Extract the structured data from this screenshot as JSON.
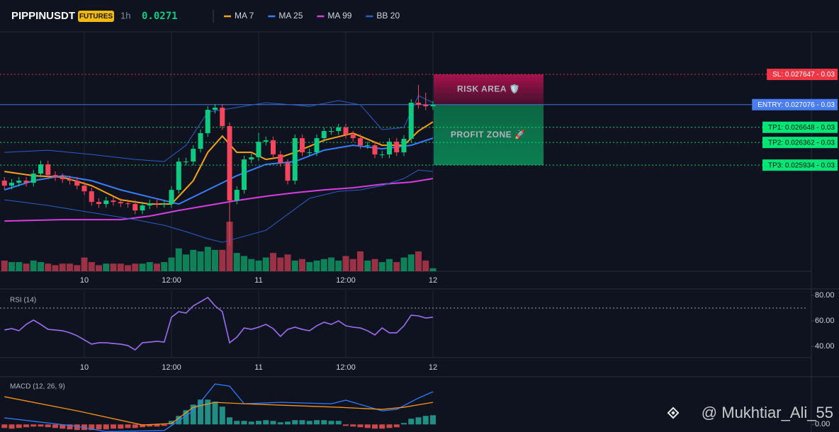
{
  "header": {
    "symbol": "PIPPINUSDT",
    "badge": "FUTURES",
    "interval": "1h",
    "price": "0.0271"
  },
  "watermark": "@ Mukhtiar_Ali_55",
  "chart_data": [
    {
      "type": "candlestick",
      "categories": [
        null,
        null,
        null,
        null,
        null,
        null,
        null,
        null,
        null,
        null,
        null,
        "10",
        null,
        null,
        null,
        null,
        null,
        null,
        null,
        null,
        null,
        null,
        null,
        "12:00",
        null,
        null,
        null,
        null,
        null,
        null,
        null,
        null,
        null,
        null,
        null,
        "11",
        null,
        null,
        null,
        null,
        null,
        null,
        null,
        null,
        null,
        null,
        null,
        "12:00",
        null,
        null,
        null,
        null,
        null,
        null,
        null,
        null,
        null,
        null,
        null,
        "12"
      ],
      "open": [
        0.02564,
        0.025546,
        0.0256,
        0.02564,
        0.0256,
        0.025774,
        0.025948,
        0.025747,
        0.025707,
        0.025667,
        0.02564,
        0.025546,
        0.025439,
        0.025239,
        0.025199,
        0.025265,
        0.025239,
        0.025212,
        0.025199,
        0.025078,
        0.025172,
        0.025212,
        0.025199,
        0.025199,
        0.025466,
        0.026001,
        0.026001,
        0.026242,
        0.026537,
        0.026978,
        0.027018,
        0.02667,
        0.025265,
        0.025466,
        0.026041,
        0.026082,
        0.026376,
        0.026403,
        0.026135,
        0.025975,
        0.02564,
        0.026443,
        0.026175,
        0.026175,
        0.026443,
        0.026577,
        0.026577,
        0.026644,
        0.02651,
        0.026443,
        0.026309,
        0.026309,
        0.026135,
        0.026135,
        0.026376,
        0.026175,
        0.02643,
        0.027112,
        0.027072,
        0.027045
      ],
      "high": [
        0.02571,
        0.02567,
        0.02571,
        0.02571,
        0.025844,
        0.026018,
        0.026018,
        0.025817,
        0.025777,
        0.025737,
        0.02571,
        0.025616,
        0.025509,
        0.025309,
        0.025335,
        0.025335,
        0.025309,
        0.025282,
        0.025269,
        0.025242,
        0.025282,
        0.025282,
        0.025269,
        0.025536,
        0.026071,
        0.026071,
        0.026312,
        0.026607,
        0.027048,
        0.027088,
        0.027088,
        0.02674,
        0.025536,
        0.026111,
        0.026152,
        0.026546,
        0.026473,
        0.026473,
        0.026205,
        0.026045,
        0.026513,
        0.026513,
        0.026245,
        0.026513,
        0.026647,
        0.026647,
        0.026714,
        0.026714,
        0.02658,
        0.026513,
        0.026379,
        0.026379,
        0.026205,
        0.026446,
        0.026446,
        0.0265,
        0.027182,
        0.02745,
        0.0273,
        0.027142
      ],
      "low": [
        0.025476,
        0.025476,
        0.02553,
        0.02553,
        0.02553,
        0.025704,
        0.025677,
        0.025637,
        0.025597,
        0.02557,
        0.025476,
        0.025369,
        0.025169,
        0.025129,
        0.025129,
        0.025169,
        0.025142,
        0.025129,
        0.025008,
        0.025008,
        0.025102,
        0.025129,
        0.025129,
        0.025129,
        0.025396,
        0.025931,
        0.025931,
        0.026172,
        0.026467,
        0.026908,
        0.0266,
        0.02442,
        0.025195,
        0.025396,
        0.025971,
        0.026012,
        0.026306,
        0.026065,
        0.025905,
        0.02557,
        0.02557,
        0.026105,
        0.026105,
        0.026105,
        0.026373,
        0.026507,
        0.026507,
        0.02644,
        0.026373,
        0.026239,
        0.026239,
        0.026065,
        0.026065,
        0.026065,
        0.026105,
        0.026105,
        0.02636,
        0.027002,
        0.026975,
        0.026975
      ],
      "close": [
        0.025546,
        0.0256,
        0.02564,
        0.0256,
        0.025774,
        0.025948,
        0.025747,
        0.025707,
        0.025667,
        0.02564,
        0.025546,
        0.025439,
        0.025239,
        0.025199,
        0.025265,
        0.025239,
        0.025212,
        0.025199,
        0.025078,
        0.025172,
        0.025212,
        0.025199,
        0.025199,
        0.025466,
        0.026001,
        0.026001,
        0.026242,
        0.026537,
        0.026978,
        0.027018,
        0.02667,
        0.025265,
        0.025466,
        0.026041,
        0.026082,
        0.026376,
        0.026403,
        0.026135,
        0.025975,
        0.02564,
        0.026443,
        0.026175,
        0.026175,
        0.026443,
        0.026577,
        0.026577,
        0.026644,
        0.02651,
        0.026443,
        0.026309,
        0.026309,
        0.026135,
        0.026135,
        0.026376,
        0.026175,
        0.02643,
        0.027112,
        0.027072,
        0.027045,
        0.027072
      ],
      "volume": [
        14,
        12,
        12,
        10,
        14,
        12,
        10,
        8,
        10,
        10,
        8,
        18,
        12,
        8,
        10,
        10,
        10,
        8,
        10,
        10,
        12,
        10,
        12,
        18,
        30,
        22,
        28,
        26,
        32,
        28,
        28,
        65,
        24,
        20,
        16,
        14,
        18,
        24,
        18,
        22,
        14,
        16,
        12,
        14,
        16,
        18,
        14,
        20,
        16,
        26,
        14,
        16,
        12,
        16,
        12,
        18,
        22,
        26,
        14,
        4
      ],
      "up_color": "#0ecb81",
      "down_color": "#f6465d",
      "series": [
        {
          "name": "MA 7",
          "color": "#f7a21b",
          "x": [
            0,
            4,
            8,
            12,
            16,
            20,
            23,
            26,
            28,
            30,
            32,
            34,
            36,
            38,
            40,
            44,
            48,
            52,
            55,
            57,
            59
          ],
          "values": [
            0.025814,
            0.025734,
            0.025707,
            0.025546,
            0.025279,
            0.025199,
            0.025199,
            0.02564,
            0.026175,
            0.026483,
            0.026175,
            0.026175,
            0.026041,
            0.026082,
            0.026175,
            0.026403,
            0.026537,
            0.026309,
            0.026309,
            0.026577,
            0.026751
          ]
        },
        {
          "name": "MA 25",
          "color": "#3b7dff",
          "x": [
            0,
            4,
            8,
            12,
            16,
            20,
            24,
            28,
            32,
            36,
            40,
            44,
            48,
            52,
            56,
            59
          ],
          "values": [
            0.025466,
            0.02564,
            0.025734,
            0.02564,
            0.025466,
            0.025332,
            0.025199,
            0.025466,
            0.025734,
            0.025948,
            0.026001,
            0.026215,
            0.026309,
            0.026242,
            0.026309,
            0.026443
          ]
        },
        {
          "name": "MA 99",
          "color": "#d63ee0",
          "x": [
            0,
            8,
            16,
            20,
            24,
            28,
            32,
            36,
            40,
            44,
            48,
            52,
            56,
            59
          ],
          "values": [
            0.024877,
            0.024904,
            0.024904,
            0.024971,
            0.025078,
            0.025172,
            0.025265,
            0.025346,
            0.025413,
            0.025466,
            0.025506,
            0.025573,
            0.025613,
            0.02568
          ]
        },
        {
          "name": "BB 20",
          "color": "#2a5fc9",
          "x": [
            0,
            6,
            12,
            18,
            22,
            25,
            28,
            30,
            36,
            42,
            46,
            49,
            52,
            55,
            57,
            59
          ],
          "values": [
            0.026175,
            0.026215,
            0.026135,
            0.026041,
            0.026001,
            0.026309,
            0.026938,
            0.026978,
            0.027112,
            0.027045,
            0.027152,
            0.027072,
            0.026603,
            0.026644,
            0.027246,
            0.027112
          ],
          "lower": [
            0.025279,
            0.025172,
            0.025038,
            0.024904,
            0.024797,
            0.024677,
            0.024543,
            0.024476,
            0.024703,
            0.025306,
            0.025439,
            0.025466,
            0.025546,
            0.02568,
            0.025841,
            0.025814
          ]
        }
      ],
      "levels": [
        {
          "value": 0.027647,
          "label": "SL: 0.027647 - 0.03",
          "color": "#f23645",
          "style": "dotted"
        },
        {
          "value": 0.027076,
          "label": "ENTRY: 0.027076 - 0.03",
          "color": "#4a7ef0",
          "style": "solid"
        },
        {
          "value": 0.026648,
          "label": "TP1: 0.026648 - 0.03",
          "color": "#00e676",
          "style": "dotted"
        },
        {
          "value": 0.026362,
          "label": "TP2: 0.026362 - 0.03",
          "color": "#00e676",
          "style": "dotted"
        },
        {
          "value": 0.025934,
          "label": "TP3: 0.025934 - 0.03",
          "color": "#00e676",
          "style": "dotted"
        }
      ],
      "zones": [
        {
          "label": "RISK AREA 🛡️",
          "from": 0.027647,
          "to": 0.027076,
          "color": "#ff3d7f"
        },
        {
          "label": "PROFIT ZONE 🚀",
          "from": 0.027076,
          "to": 0.025934,
          "color": "#39e6a1"
        }
      ],
      "ylim": [
        0.02393,
        0.02845
      ]
    },
    {
      "type": "line",
      "title": "RSI (14)",
      "categories": [
        null,
        null,
        null,
        null,
        null,
        null,
        null,
        null,
        null,
        null,
        null,
        "10",
        null,
        null,
        null,
        null,
        null,
        null,
        null,
        null,
        null,
        null,
        null,
        "12:00",
        null,
        null,
        null,
        null,
        null,
        null,
        null,
        null,
        null,
        null,
        null,
        "11",
        null,
        null,
        null,
        null,
        null,
        null,
        null,
        null,
        null,
        null,
        null,
        "12:00",
        null,
        null,
        null,
        null,
        null,
        null,
        null,
        null,
        null,
        null,
        null,
        "12"
      ],
      "values": [
        52.8,
        53.9,
        52.2,
        57.2,
        60.6,
        57.2,
        53.3,
        52.8,
        52.2,
        50.6,
        48.3,
        45.0,
        41.7,
        42.8,
        42.8,
        42.2,
        41.7,
        40.6,
        37.2,
        42.8,
        43.3,
        43.9,
        43.3,
        62.8,
        67.2,
        66.1,
        71.7,
        75.0,
        78.3,
        71.7,
        67.2,
        42.8,
        47.2,
        54.4,
        53.3,
        55.0,
        57.2,
        53.9,
        47.8,
        53.3,
        55.0,
        53.3,
        52.2,
        56.1,
        58.9,
        57.2,
        60.0,
        56.1,
        55.0,
        54.4,
        52.2,
        48.9,
        54.4,
        50.6,
        50.6,
        56.1,
        64.4,
        63.9,
        62.2,
        62.8
      ],
      "color": "#9b6ff0",
      "overbought": 70,
      "ylim": [
        31.1,
        83.9
      ],
      "yticks": [
        {
          "value": 80,
          "label": "80.00"
        },
        {
          "value": 60,
          "label": "60.00"
        },
        {
          "value": 40,
          "label": "40.00"
        }
      ]
    },
    {
      "type": "macd",
      "title": "MACD (12, 26, 9)",
      "histogram": [
        -4.7e-05,
        -5.6e-05,
        -4.7e-05,
        -3.7e-05,
        -2.8e-05,
        -2.8e-05,
        -3.7e-05,
        -4.7e-05,
        -5.6e-05,
        -6.5e-05,
        -7.4e-05,
        -7.4e-05,
        -7.4e-05,
        -6.5e-05,
        -6.5e-05,
        -5.6e-05,
        -5.6e-05,
        -4.7e-05,
        -4.7e-05,
        -3.7e-05,
        -2.8e-05,
        -2.8e-05,
        -1.9e-05,
        4.7e-05,
        0.000112,
        0.000187,
        0.000261,
        0.000327,
        0.000327,
        0.000299,
        0.000234,
        9.3e-05,
        4.7e-05,
        4.7e-05,
        3.7e-05,
        4.7e-05,
        5.6e-05,
        4.7e-05,
        2.8e-05,
        3.7e-05,
        5.6e-05,
        5.6e-05,
        4.7e-05,
        5.6e-05,
        5.6e-05,
        4.7e-05,
        4.7e-05,
        -1.9e-05,
        -2.8e-05,
        -3.7e-05,
        -4.7e-05,
        -5.6e-05,
        -5.6e-05,
        -4.7e-05,
        -3.7e-05,
        1.9e-05,
        7.5e-05,
        9.3e-05,
        0.000112,
        0.000121
      ],
      "up_color": "#26a69a",
      "down_color": "#ef5350",
      "series": [
        {
          "color": "#2f7bff",
          "x": [
            0,
            10,
            14,
            22,
            26,
            29,
            31,
            33,
            38,
            45,
            47,
            52,
            54,
            57,
            59
          ],
          "values": [
            8.6e-05,
            -2.5e-05,
            -9.5e-05,
            -8.1e-05,
            0.000179,
            0.000533,
            0.000505,
            0.000272,
            0.000291,
            0.000272,
            0.000319,
            0.000179,
            0.000198,
            0.000347,
            0.000431
          ]
        },
        {
          "color": "#f7931a",
          "x": [
            0,
            10,
            19,
            23,
            26,
            29,
            33,
            38,
            46,
            52,
            55,
            59
          ],
          "values": [
            0.000365,
            0.000179,
            -7e-06,
            1.2e-05,
            0.000226,
            0.000291,
            0.000272,
            0.000254,
            0.000226,
            0.000198,
            0.000226,
            0.000291
          ]
        }
      ],
      "ylim": [
        -0.0001,
        0.0006
      ],
      "yticks": [
        {
          "value": 0,
          "label": "0.00"
        }
      ]
    }
  ]
}
